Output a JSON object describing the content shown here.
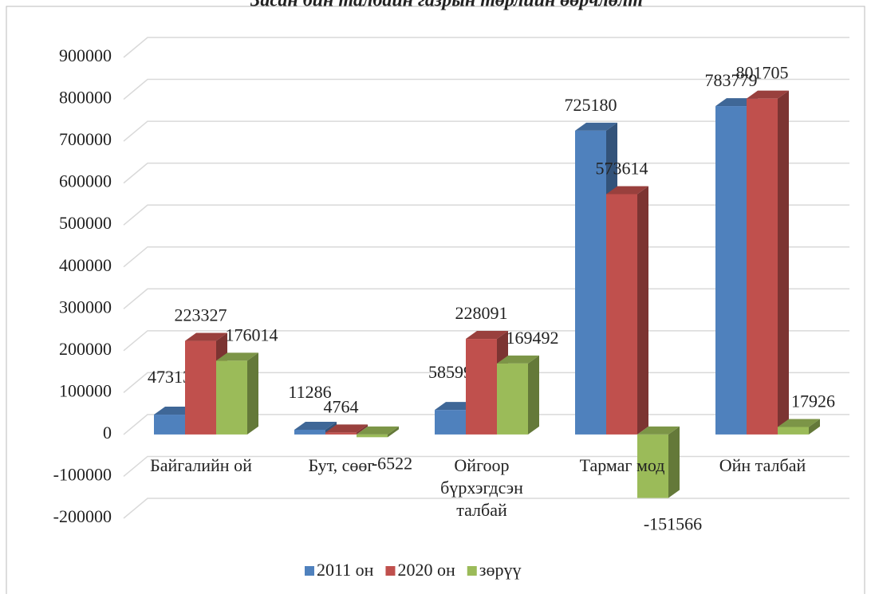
{
  "chart_data": {
    "type": "bar3d",
    "title": "Засан бин талбайн газрын төрлийн өөрчлөлт",
    "categories": [
      "Байгалийн ой",
      "Бут, сөөг",
      "Ойгоор бүрхэгдсэн талбай",
      "Тармаг мод",
      "Ойн талбай"
    ],
    "series": [
      {
        "name": "2011 он",
        "color": "#4f81bd",
        "values": [
          47313,
          11286,
          58599,
          725180,
          783779
        ]
      },
      {
        "name": "2020 он",
        "color": "#c0504d",
        "values": [
          223327,
          4764,
          228091,
          573614,
          801705
        ]
      },
      {
        "name": "зөрүү",
        "color": "#9bbb59",
        "values": [
          176014,
          -6522,
          169492,
          -151566,
          17926
        ]
      }
    ],
    "ylim": [
      -200000,
      900000
    ],
    "yticks": [
      -200000,
      -100000,
      0,
      100000,
      200000,
      300000,
      400000,
      500000,
      600000,
      700000,
      800000,
      900000
    ],
    "grid": true,
    "legend": "bottom"
  }
}
